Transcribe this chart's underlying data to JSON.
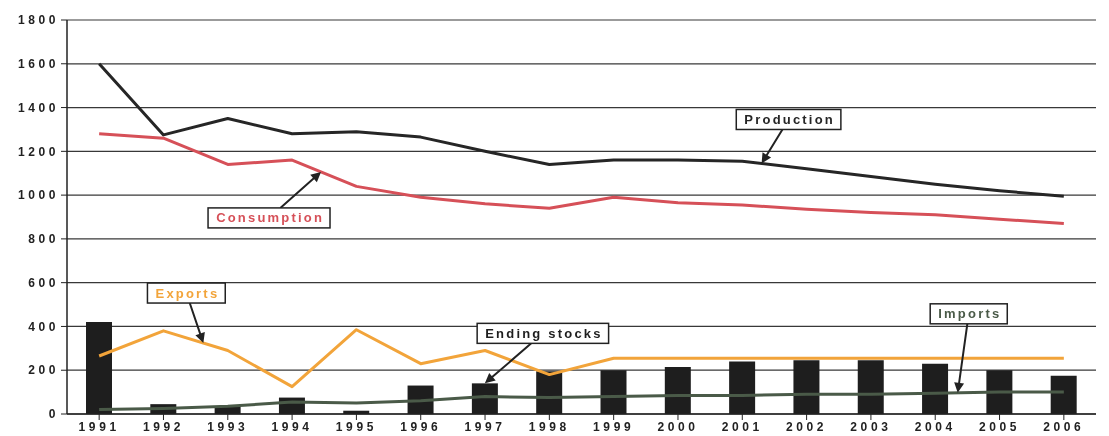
{
  "chart_data": {
    "type": "line",
    "categories": [
      "1991",
      "1992",
      "1993",
      "1994",
      "1995",
      "1996",
      "1997",
      "1998",
      "1999",
      "2000",
      "2001",
      "2002",
      "2003",
      "2004",
      "2005",
      "2006"
    ],
    "series": [
      {
        "name": "Ending stocks",
        "type": "bar",
        "color": "#1e1e1e",
        "values": [
          420,
          45,
          35,
          75,
          15,
          130,
          140,
          195,
          200,
          215,
          240,
          245,
          245,
          230,
          200,
          175
        ]
      },
      {
        "name": "Production",
        "color": "#262626",
        "values": [
          1600,
          1275,
          1350,
          1280,
          1290,
          1265,
          1200,
          1140,
          1160,
          1160,
          1155,
          1120,
          1085,
          1050,
          1020,
          995
        ]
      },
      {
        "name": "Consumption",
        "color": "#d65058",
        "values": [
          1280,
          1260,
          1140,
          1160,
          1040,
          990,
          960,
          940,
          990,
          965,
          955,
          935,
          920,
          910,
          890,
          870
        ]
      },
      {
        "name": "Exports",
        "color": "#f2a43a",
        "values": [
          265,
          380,
          290,
          125,
          385,
          230,
          290,
          180,
          255,
          255,
          255,
          255,
          255,
          255,
          255,
          255
        ]
      },
      {
        "name": "Imports",
        "color": "#4a5a48",
        "values": [
          20,
          25,
          35,
          55,
          50,
          60,
          80,
          75,
          80,
          85,
          85,
          90,
          90,
          95,
          100,
          100
        ]
      }
    ],
    "ylim": [
      0,
      1800
    ],
    "yticks": [
      0,
      200,
      400,
      600,
      800,
      1000,
      1200,
      1400,
      1600,
      1800
    ],
    "grid": "y",
    "marker": "none"
  }
}
